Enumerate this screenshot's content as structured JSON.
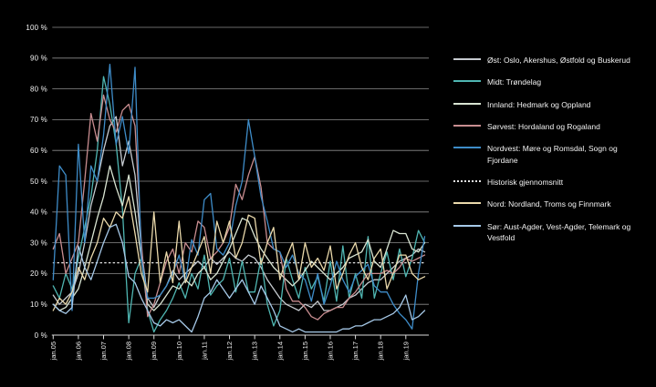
{
  "figure": {
    "background": "#000000",
    "text_color": "#f2f2f2",
    "grid_color": "rgba(255,255,255,0.55)",
    "axis_color": "#d8d8d8"
  },
  "chart_data": {
    "type": "line",
    "title": "",
    "xlabel": "",
    "ylabel": "",
    "ylim": [
      0,
      100
    ],
    "grid": "horizontal",
    "legend_position": "right",
    "x_unit": "month",
    "points_per_year": 4,
    "x_tick_labels": [
      "jan.05",
      "jan.06",
      "jan.07",
      "jan.08",
      "jan.09",
      "jan.10",
      "jan.11",
      "jan.12",
      "jan.13",
      "jan.14",
      "jan.15",
      "jan.16",
      "jan.17",
      "jan.18",
      "jan.19"
    ],
    "y_tick_labels": [
      "100 %",
      "90 %",
      "80 %",
      "70 %",
      "60 %",
      "50 %",
      "40 %",
      "30 %",
      "20 %",
      "10 %",
      "0 %"
    ],
    "series": [
      {
        "name": "Øst: Oslo, Akershus, Østfold og Buskerud",
        "color": "#c6cbd0",
        "values": [
          13,
          10,
          12,
          14,
          20,
          30,
          42,
          50,
          60,
          68,
          71,
          55,
          63,
          52,
          28,
          12,
          9,
          13,
          16,
          21,
          18,
          20,
          22,
          24,
          22,
          25,
          23,
          25,
          27,
          25,
          24,
          26,
          25,
          22,
          18,
          15,
          12,
          10,
          9,
          8,
          10,
          9,
          11,
          8,
          8,
          9,
          10,
          12,
          13,
          15,
          17,
          18,
          18,
          20,
          22,
          24,
          25,
          26,
          28,
          27
        ]
      },
      {
        "name": "Midt: Trøndelag",
        "color": "#4fb6b2",
        "values": [
          16,
          12,
          20,
          15,
          25,
          35,
          45,
          60,
          84,
          75,
          62,
          41,
          4,
          20,
          25,
          8,
          1,
          5,
          8,
          12,
          17,
          12,
          20,
          15,
          26,
          13,
          16,
          18,
          25,
          14,
          24,
          14,
          14,
          25,
          10,
          3,
          8,
          25,
          18,
          12,
          22,
          15,
          19,
          11,
          24,
          11,
          29,
          12,
          20,
          12,
          32,
          12,
          20,
          27,
          18,
          28,
          19,
          25,
          34,
          30
        ]
      },
      {
        "name": "Innland: Hedmark og Oppland",
        "color": "#d9e5d3",
        "values": [
          10,
          8,
          9,
          12,
          15,
          22,
          30,
          38,
          45,
          55,
          48,
          42,
          52,
          40,
          25,
          10,
          8,
          10,
          13,
          16,
          15,
          18,
          16,
          20,
          22,
          18,
          20,
          24,
          28,
          33,
          38,
          37,
          32,
          28,
          25,
          22,
          20,
          18,
          16,
          18,
          21,
          24,
          22,
          20,
          18,
          20,
          22,
          25,
          26,
          27,
          31,
          24,
          22,
          28,
          34,
          33,
          33,
          28,
          27,
          30
        ]
      },
      {
        "name": "Sørvest: Hordaland og Rogaland",
        "color": "#c88d90",
        "values": [
          28,
          33,
          20,
          25,
          30,
          50,
          72,
          63,
          78,
          70,
          66,
          73,
          75,
          68,
          30,
          6,
          10,
          17,
          24,
          28,
          20,
          30,
          27,
          37,
          35,
          25,
          27,
          30,
          35,
          49,
          44,
          52,
          58,
          48,
          30,
          28,
          27,
          15,
          11,
          11,
          9,
          6,
          5,
          7,
          8,
          9,
          9,
          12,
          14,
          17,
          20,
          20,
          20,
          21,
          20,
          22,
          25,
          24,
          25,
          26
        ]
      },
      {
        "name": "Nordvest: Møre og Romsdal, Sogn og Fjordane",
        "color": "#3e8cc8",
        "values": [
          18,
          55,
          52,
          8,
          62,
          30,
          55,
          50,
          65,
          88,
          62,
          71,
          59,
          87,
          25,
          12,
          12,
          13,
          16,
          20,
          26,
          17,
          31,
          26,
          44,
          46,
          28,
          26,
          30,
          42,
          50,
          70,
          58,
          45,
          37,
          28,
          27,
          22,
          26,
          20,
          18,
          11,
          20,
          10,
          16,
          24,
          18,
          14,
          19,
          21,
          23,
          16,
          14,
          14,
          10,
          7,
          5,
          2,
          20,
          32
        ]
      },
      {
        "name": "Historisk gjennomsnitt",
        "color": "#e6e6e6",
        "style": "dotted",
        "constant_value": 23.5
      },
      {
        "name": "Nord: Nordland, Troms og Finnmark",
        "color": "#ead9ab",
        "values": [
          8,
          12,
          10,
          14,
          22,
          18,
          25,
          30,
          38,
          35,
          40,
          38,
          45,
          33,
          20,
          14,
          40,
          17,
          27,
          17,
          37,
          17,
          22,
          27,
          32,
          20,
          37,
          30,
          37,
          25,
          30,
          39,
          38,
          23,
          30,
          35,
          18,
          25,
          30,
          18,
          30,
          22,
          25,
          21,
          29,
          15,
          20,
          26,
          30,
          22,
          18,
          25,
          28,
          15,
          20,
          26,
          26,
          20,
          18,
          19
        ]
      },
      {
        "name": "Sør: Aust-Agder, Vest-Agder, Telemark og Vestfold",
        "color": "#a6c9e8",
        "values": [
          10,
          8,
          7,
          9,
          29,
          22,
          18,
          24,
          30,
          35,
          36,
          30,
          19,
          17,
          12,
          8,
          4,
          3,
          5,
          4,
          5,
          3,
          1,
          6,
          12,
          14,
          18,
          15,
          12,
          15,
          18,
          14,
          10,
          16,
          12,
          8,
          3,
          2,
          1,
          2,
          1,
          1,
          1,
          1,
          1,
          1,
          2,
          2,
          3,
          3,
          4,
          5,
          5,
          6,
          7,
          9,
          13,
          5,
          6,
          8
        ]
      }
    ]
  }
}
